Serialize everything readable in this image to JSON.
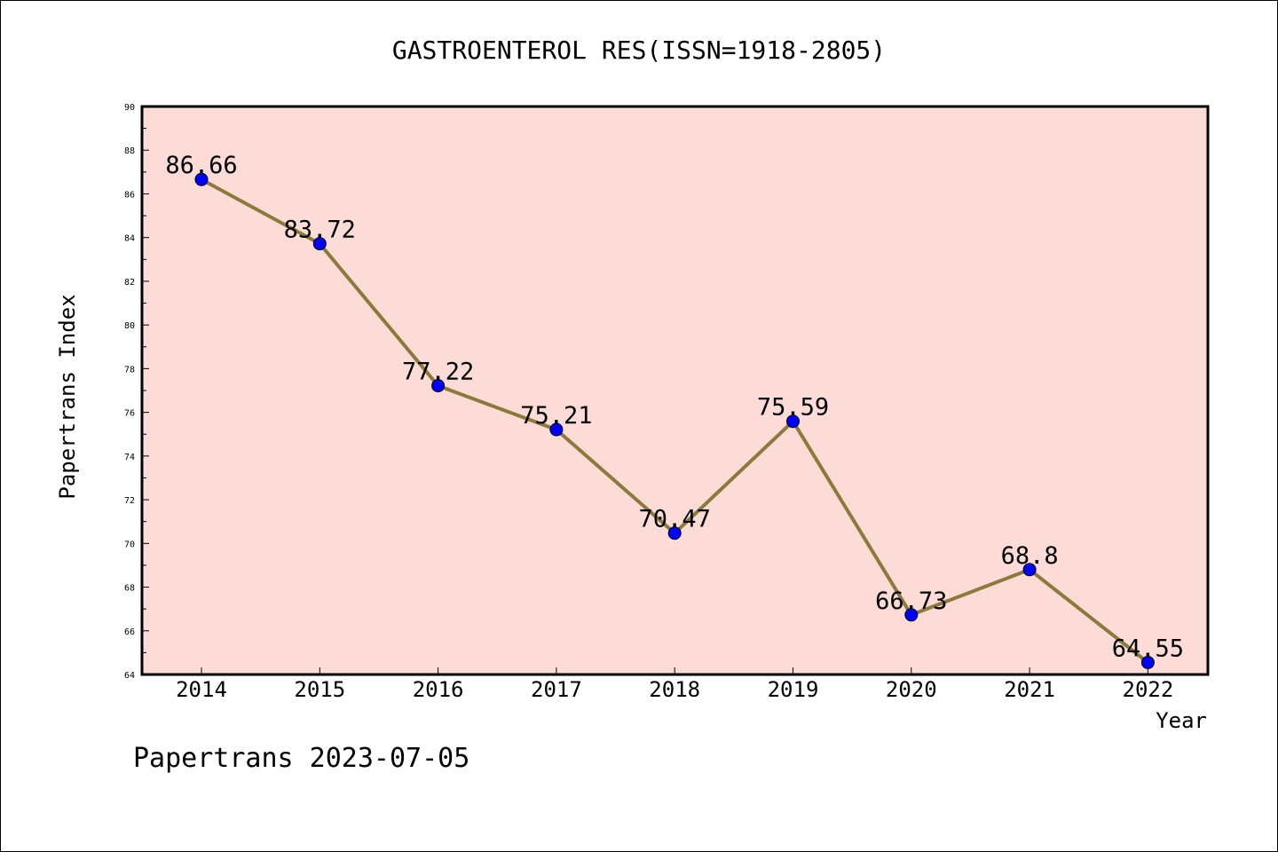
{
  "chart_data": {
    "type": "line",
    "title": "GASTROENTEROL RES(ISSN=1918-2805)",
    "xlabel": "Year",
    "ylabel": "Papertrans Index",
    "categories": [
      "2014",
      "2015",
      "2016",
      "2017",
      "2018",
      "2019",
      "2020",
      "2021",
      "2022"
    ],
    "series": [
      {
        "values": [
          86.66,
          83.72,
          77.22,
          75.21,
          70.47,
          75.59,
          66.73,
          68.8,
          64.55
        ],
        "labels": [
          "86.66",
          "83.72",
          "77.22",
          "75.21",
          "70.47",
          "75.59",
          "66.73",
          "68.8",
          "64.55"
        ]
      }
    ],
    "ylim": [
      64,
      90
    ],
    "yticks": [
      "64",
      "66",
      "68",
      "70",
      "72",
      "74",
      "76",
      "78",
      "80",
      "82",
      "84",
      "86",
      "88",
      "90"
    ],
    "grid": false,
    "colors": {
      "plot_background": "#fddcd8",
      "line": "#8c7a3a",
      "marker": "#0000ff"
    },
    "footer": "Papertrans 2023-07-05"
  }
}
